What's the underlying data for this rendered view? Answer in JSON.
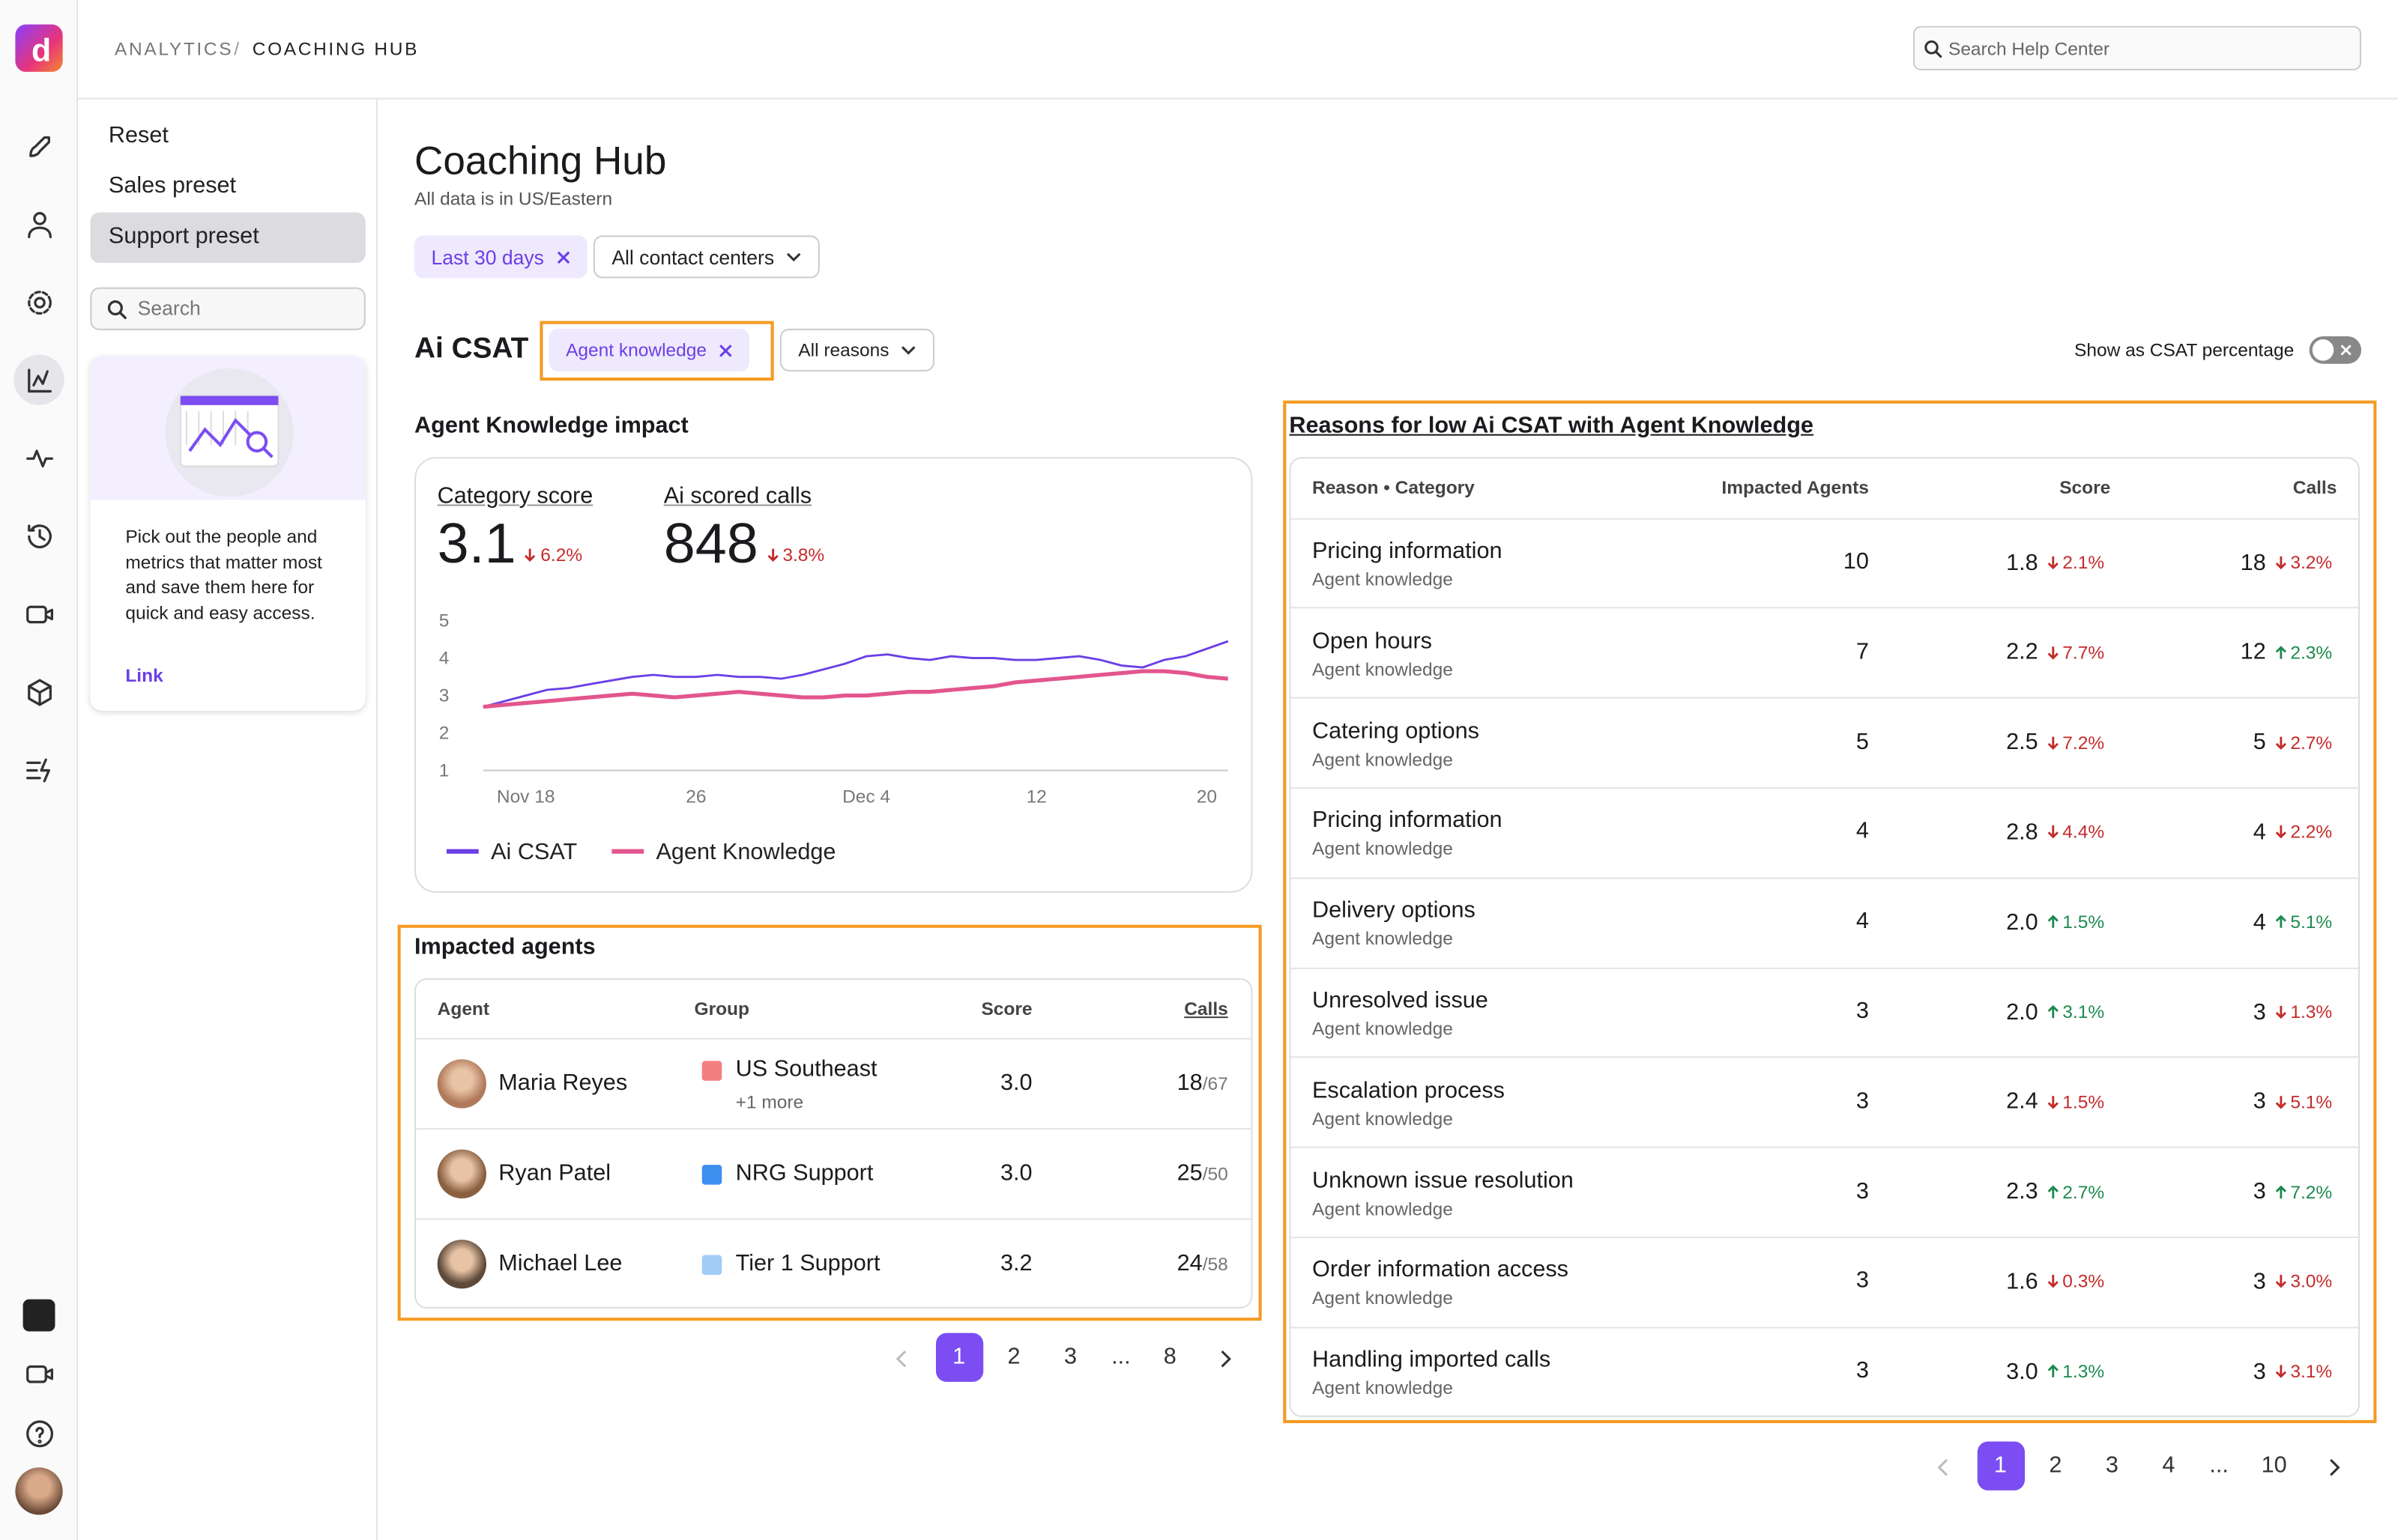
{
  "breadcrumb": {
    "parent": "ANALYTICS",
    "separator": "/",
    "current": "COACHING HUB"
  },
  "help_search": "Search Help Center",
  "sidebar": {
    "presets": [
      "Reset",
      "Sales preset",
      "Support preset"
    ],
    "active_preset": 2,
    "search": "Search",
    "promo": {
      "text": "Pick out the people and metrics that matter most and save them here for quick and easy access.",
      "link": "Link"
    }
  },
  "page": {
    "title": "Coaching Hub",
    "subtitle": "All data is in US/Eastern",
    "filters": [
      "Last 30 days",
      "All contact centers"
    ]
  },
  "csat": {
    "title": "Ai CSAT",
    "filters": [
      "Agent knowledge",
      "All reasons"
    ],
    "toggle_label": "Show as CSAT percentage"
  },
  "impact": {
    "title": "Agent Knowledge impact",
    "metrics": [
      {
        "label": "Category score",
        "value": "3.1",
        "change": {
          "direction": "down",
          "value": "6.2%"
        }
      },
      {
        "label": "Ai scored calls",
        "value": "848",
        "change": {
          "direction": "down",
          "value": "3.8%"
        }
      }
    ],
    "chart_data": {
      "type": "line",
      "categories": [
        null,
        null,
        "Nov 18",
        null,
        null,
        null,
        null,
        null,
        null,
        null,
        "26",
        null,
        null,
        null,
        null,
        null,
        null,
        null,
        "Dec 4",
        null,
        null,
        null,
        null,
        null,
        null,
        null,
        "12",
        null,
        null,
        null,
        null,
        null,
        null,
        null,
        "20",
        null
      ],
      "series": [
        {
          "name": "Ai CSAT",
          "color": "#6b3fe6",
          "values": [
            2.7,
            2.85,
            3.0,
            3.15,
            3.2,
            3.3,
            3.4,
            3.5,
            3.55,
            3.5,
            3.5,
            3.55,
            3.5,
            3.5,
            3.45,
            3.55,
            3.7,
            3.85,
            4.05,
            4.1,
            4.0,
            3.95,
            4.05,
            4.0,
            4.0,
            3.95,
            3.95,
            4.0,
            4.05,
            3.95,
            3.8,
            3.75,
            3.95,
            4.05,
            4.25,
            4.45
          ]
        },
        {
          "name": "Agent Knowledge",
          "color": "#e2568f",
          "values": [
            2.7,
            2.75,
            2.8,
            2.85,
            2.9,
            2.95,
            3.0,
            3.05,
            3.0,
            2.95,
            3.0,
            3.05,
            3.1,
            3.05,
            3.0,
            2.95,
            2.95,
            3.0,
            3.0,
            3.05,
            3.1,
            3.1,
            3.15,
            3.2,
            3.25,
            3.35,
            3.4,
            3.45,
            3.5,
            3.55,
            3.6,
            3.65,
            3.65,
            3.6,
            3.5,
            3.45
          ]
        }
      ],
      "ylim": [
        1,
        5
      ],
      "yticks": [
        1,
        2,
        3,
        4,
        5
      ],
      "grid": false
    }
  },
  "impacted_agents": {
    "title": "Impacted agents",
    "columns": [
      "Agent",
      "Group",
      "Score",
      "Calls"
    ],
    "rows": [
      {
        "agent": "Maria Reyes",
        "avatar": "#b07a5a",
        "group": "US Southeast",
        "group_color": "#f27f7f",
        "group_more": "+1 more",
        "score": "3.0",
        "calls": "18",
        "of": "/67"
      },
      {
        "agent": "Ryan Patel",
        "avatar": "#8a6040",
        "group": "NRG Support",
        "group_color": "#3d8ff0",
        "score": "3.0",
        "calls": "25",
        "of": "/50"
      },
      {
        "agent": "Michael Lee",
        "avatar": "#5e4a3a",
        "group": "Tier 1 Support",
        "group_color": "#a3ccf6",
        "score": "3.2",
        "calls": "24",
        "of": "/58"
      }
    ],
    "pagination": [
      "1",
      "2",
      "3",
      "...",
      "8"
    ],
    "active_page": 0
  },
  "reasons": {
    "title": "Reasons for low Ai CSAT with Agent Knowledge",
    "columns": [
      "Reason • Category",
      "Impacted Agents",
      "Score",
      "Calls"
    ],
    "rows": [
      {
        "reason": "Pricing information",
        "category": "Agent knowledge",
        "agents": "10",
        "score": "1.8",
        "score_change": {
          "direction": "down",
          "value": "2.1%"
        },
        "calls": "18",
        "calls_change": {
          "direction": "down",
          "value": "3.2%"
        }
      },
      {
        "reason": "Open hours",
        "category": "Agent knowledge",
        "agents": "7",
        "score": "2.2",
        "score_change": {
          "direction": "down",
          "value": "7.7%"
        },
        "calls": "12",
        "calls_change": {
          "direction": "up",
          "value": "2.3%"
        }
      },
      {
        "reason": "Catering options",
        "category": "Agent knowledge",
        "agents": "5",
        "score": "2.5",
        "score_change": {
          "direction": "down",
          "value": "7.2%"
        },
        "calls": "5",
        "calls_change": {
          "direction": "down",
          "value": "2.7%"
        }
      },
      {
        "reason": "Pricing information",
        "category": "Agent knowledge",
        "agents": "4",
        "score": "2.8",
        "score_change": {
          "direction": "down",
          "value": "4.4%"
        },
        "calls": "4",
        "calls_change": {
          "direction": "down",
          "value": "2.2%"
        }
      },
      {
        "reason": "Delivery options",
        "category": "Agent knowledge",
        "agents": "4",
        "score": "2.0",
        "score_change": {
          "direction": "up",
          "value": "1.5%"
        },
        "calls": "4",
        "calls_change": {
          "direction": "up",
          "value": "5.1%"
        }
      },
      {
        "reason": "Unresolved issue",
        "category": "Agent knowledge",
        "agents": "3",
        "score": "2.0",
        "score_change": {
          "direction": "up",
          "value": "3.1%"
        },
        "calls": "3",
        "calls_change": {
          "direction": "down",
          "value": "1.3%"
        }
      },
      {
        "reason": "Escalation process",
        "category": "Agent knowledge",
        "agents": "3",
        "score": "2.4",
        "score_change": {
          "direction": "down",
          "value": "1.5%"
        },
        "calls": "3",
        "calls_change": {
          "direction": "down",
          "value": "5.1%"
        }
      },
      {
        "reason": "Unknown issue resolution",
        "category": "Agent knowledge",
        "agents": "3",
        "score": "2.3",
        "score_change": {
          "direction": "up",
          "value": "2.7%"
        },
        "calls": "3",
        "calls_change": {
          "direction": "up",
          "value": "7.2%"
        }
      },
      {
        "reason": "Order information access",
        "category": "Agent knowledge",
        "agents": "3",
        "score": "1.6",
        "score_change": {
          "direction": "down",
          "value": "0.3%"
        },
        "calls": "3",
        "calls_change": {
          "direction": "down",
          "value": "3.0%"
        }
      },
      {
        "reason": "Handling imported calls",
        "category": "Agent knowledge",
        "agents": "3",
        "score": "3.0",
        "score_change": {
          "direction": "up",
          "value": "1.3%"
        },
        "calls": "3",
        "calls_change": {
          "direction": "down",
          "value": "3.1%"
        }
      }
    ],
    "pagination": [
      "1",
      "2",
      "3",
      "4",
      "...",
      "10"
    ],
    "active_page": 0
  }
}
